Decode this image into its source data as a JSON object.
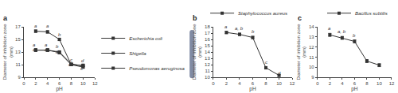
{
  "chart_data": [
    {
      "type": "line",
      "title": "a",
      "x_label": "pH",
      "y_label": "Diameter of inhibition zone\n(mm)",
      "xlim": [
        0,
        12
      ],
      "ylim": [
        9,
        17
      ],
      "xticks": [
        0,
        2,
        4,
        6,
        8,
        10,
        12
      ],
      "yticks": [
        9,
        11,
        13,
        15,
        17
      ],
      "color": "#333333",
      "marker": "square",
      "legend": "upper right",
      "grid": false,
      "series": [
        {
          "name": "Escherichia coli",
          "x": [
            2,
            4,
            6,
            8,
            10
          ],
          "values": [
            13.3,
            13.3,
            13.0,
            11.1,
            10.8
          ],
          "errors": [
            0.2,
            0.2,
            0.2,
            0.15,
            0.15
          ]
        },
        {
          "name": "Shigella",
          "x": [
            2,
            4,
            6,
            8,
            10
          ],
          "values": [
            16.3,
            16.2,
            15.0,
            11.0,
            10.9
          ],
          "errors": [
            0.2,
            0.2,
            0.2,
            0.15,
            0.15
          ]
        },
        {
          "name": "Pseudomonas aeruginosa",
          "x": [
            2,
            4,
            6,
            8,
            10
          ],
          "values": [
            13.3,
            13.3,
            12.9,
            11.0,
            10.6
          ],
          "errors": [
            0.2,
            0.2,
            0.2,
            0.15,
            0.15
          ]
        }
      ],
      "annotations": [
        {
          "text": "a",
          "x": 2,
          "y": 16.65
        },
        {
          "text": "a",
          "x": 4,
          "y": 16.6
        },
        {
          "text": "b",
          "x": 6,
          "y": 15.3
        },
        {
          "text": "c",
          "x": 8,
          "y": 11.3
        },
        {
          "text": "d",
          "x": 10,
          "y": 11.1
        },
        {
          "text": "a",
          "x": 1.7,
          "y": 13.65
        },
        {
          "text": "a",
          "x": 3.7,
          "y": 13.65
        },
        {
          "text": "b",
          "x": 5.7,
          "y": 13.35
        },
        {
          "text": "c",
          "x": 8,
          "y": 10.6
        },
        {
          "text": "d",
          "x": 10,
          "y": 10.4
        },
        {
          "text": "a",
          "x": 1.7,
          "y": 12.85
        },
        {
          "text": "a",
          "x": 3.7,
          "y": 12.85
        },
        {
          "text": "b",
          "x": 5.7,
          "y": 12.5
        },
        {
          "text": "c",
          "x": 7.7,
          "y": 10.55
        },
        {
          "text": "c",
          "x": 9.7,
          "y": 9.9
        }
      ]
    },
    {
      "type": "line",
      "title": "b",
      "x_label": "pH",
      "y_label": "Diameter of inhibition zone\n(mm)",
      "xlim": [
        0,
        12
      ],
      "ylim": [
        10,
        18
      ],
      "xticks": [
        0,
        2,
        4,
        6,
        8,
        10,
        12
      ],
      "yticks": [
        10,
        11,
        12,
        13,
        14,
        15,
        16,
        17,
        18
      ],
      "color": "#333333",
      "marker": "square",
      "legend": "upper right",
      "grid": false,
      "series": [
        {
          "name": "Staphylococcus aureus",
          "x": [
            2,
            4,
            6,
            8,
            10
          ],
          "values": [
            17.1,
            16.8,
            16.3,
            11.5,
            10.3
          ],
          "errors": [
            0.2,
            0.2,
            0.2,
            0.2,
            0.15
          ]
        }
      ],
      "annotations": [
        {
          "text": "a",
          "x": 2,
          "y": 17.5
        },
        {
          "text": "a, b",
          "x": 4,
          "y": 17.2
        },
        {
          "text": "b",
          "x": 6,
          "y": 16.7
        },
        {
          "text": "c",
          "x": 8,
          "y": 11.9
        },
        {
          "text": "d",
          "x": 10,
          "y": 10.1
        }
      ]
    },
    {
      "type": "line",
      "title": "c",
      "x_label": "pH",
      "y_label": "Diameter of inhibition zone\n(mm)",
      "xlim": [
        0,
        12
      ],
      "ylim": [
        9,
        14
      ],
      "xticks": [
        0,
        2,
        4,
        6,
        8,
        10,
        12
      ],
      "yticks": [
        9,
        10,
        11,
        12,
        13,
        14
      ],
      "color": "#333333",
      "marker": "square",
      "legend": "upper right",
      "grid": false,
      "series": [
        {
          "name": "Bacillus subtilis",
          "x": [
            2,
            4,
            6,
            8,
            10
          ],
          "values": [
            13.2,
            12.9,
            12.55,
            10.6,
            10.2
          ],
          "errors": [
            0.15,
            0.15,
            0.15,
            0.15,
            0.15
          ]
        }
      ],
      "annotations": [
        {
          "text": "a",
          "x": 2,
          "y": 13.5
        },
        {
          "text": "a, b",
          "x": 4,
          "y": 13.2
        },
        {
          "text": "b",
          "x": 6,
          "y": 12.85
        },
        {
          "text": "c",
          "x": 8,
          "y": 10.4
        },
        {
          "text": "c",
          "x": 10,
          "y": 9.95
        }
      ]
    }
  ]
}
